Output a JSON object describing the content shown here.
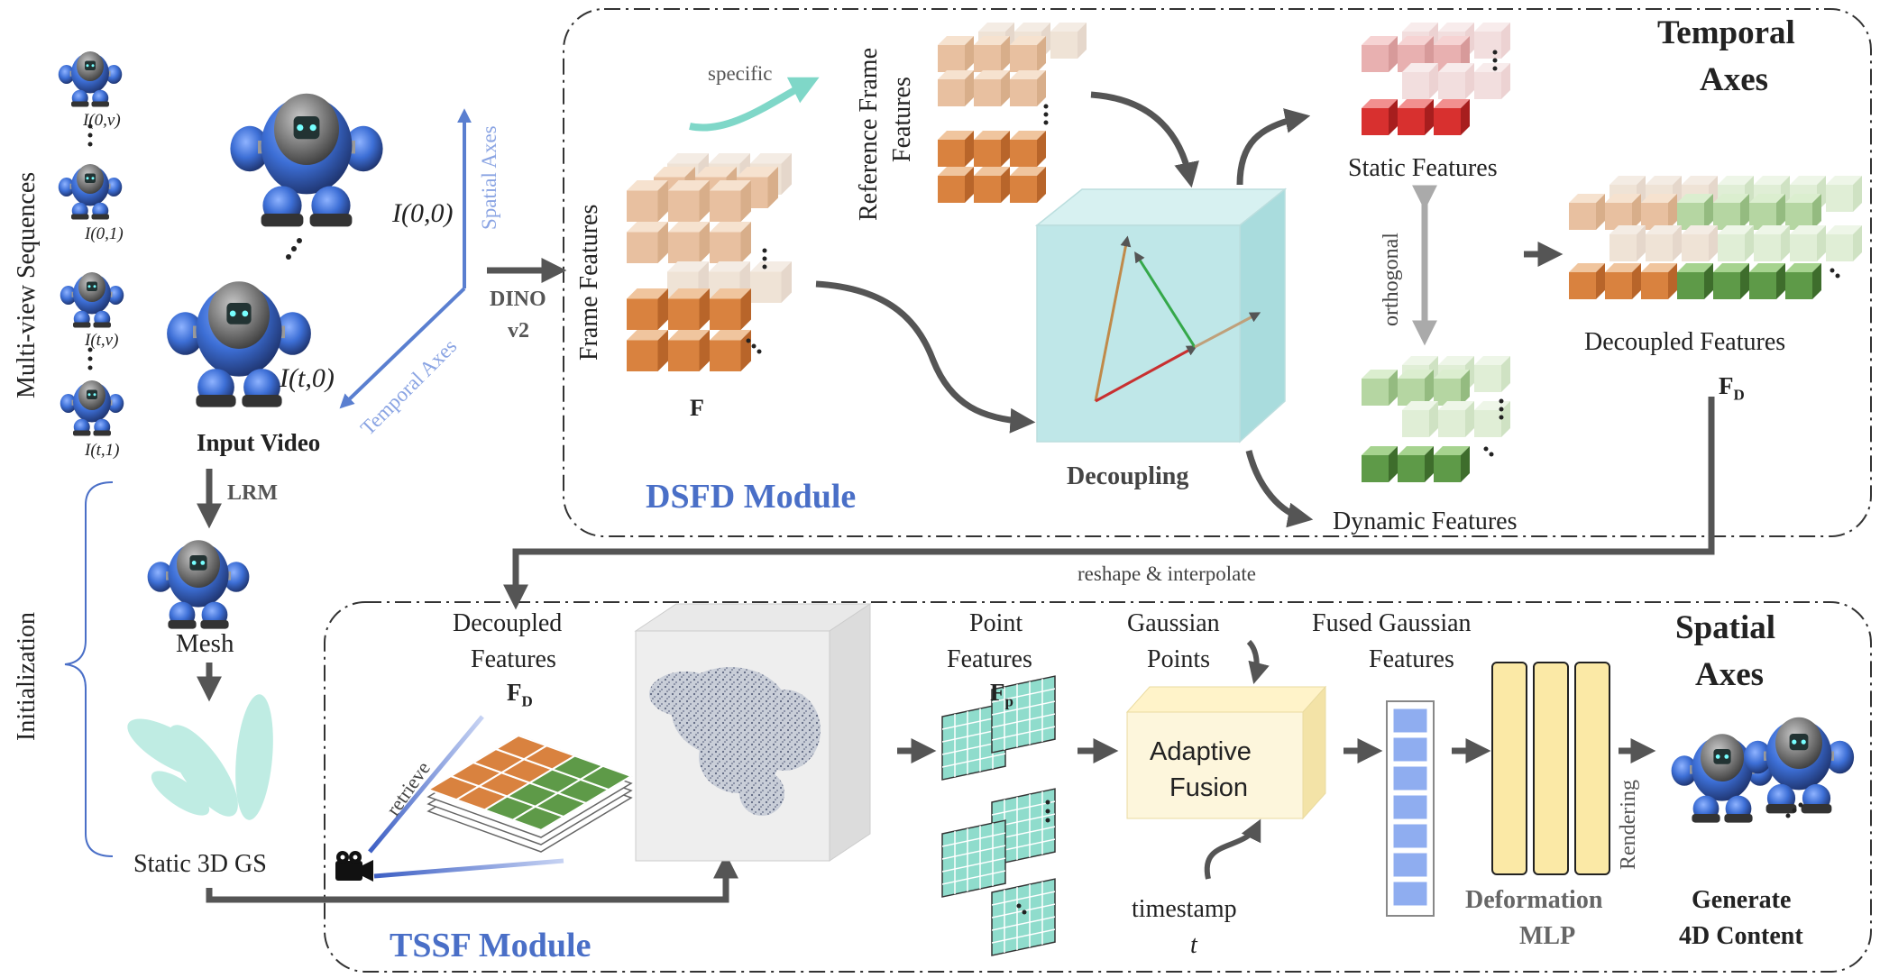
{
  "labels": {
    "multiview": "Multi-view Sequences",
    "initialization": "Initialization",
    "frames": [
      "I(0,v)",
      "I(0,1)",
      "I(t,v)",
      "I(t,1)"
    ],
    "i00": "I(0,0)",
    "it0": "I(t,0)",
    "spatial_axes_arrow": "Spatial Axes",
    "temporal_axes_arrow": "Temporal Axes",
    "input_video": "Input Video",
    "lrm": "LRM",
    "mesh": "Mesh",
    "static_gs": "Static 3D GS",
    "dino": "DINO",
    "dino_v2": "v2"
  },
  "dsfd": {
    "title": "DSFD Module",
    "frame_features": "Frame Features",
    "F": "F",
    "specific": "specific",
    "reference_frame_features_1": "Reference Frame",
    "reference_frame_features_2": "Features",
    "decoupling": "Decoupling",
    "static_features": "Static Features",
    "dynamic_features": "Dynamic Features",
    "orthogonal": "orthogonal",
    "decoupled_features": "Decoupled Features",
    "FD": "F",
    "FD_sub": "D",
    "temporal_1": "Temporal",
    "temporal_2": "Axes"
  },
  "reshape": "reshape & interpolate",
  "tssf": {
    "title": "TSSF Module",
    "decoupled_1": "Decoupled",
    "decoupled_2": "Features",
    "FD": "F",
    "FD_sub": "D",
    "retrieve": "retrieve",
    "point_1": "Point",
    "point_2": "Features",
    "Fp": "F",
    "Fp_sub": "p",
    "gaussian_1": "Gaussian",
    "gaussian_2": "Points",
    "adaptive_1": "Adaptive",
    "adaptive_2": "Fusion",
    "timestamp": "timestamp",
    "t": "t",
    "fused_1": "Fused Gaussian",
    "fused_2": "Features",
    "deformation_1": "Deformation",
    "deformation_2": "MLP",
    "rendering": "Rendering",
    "generate_1": "Generate",
    "generate_2": "4D Content",
    "spatial_1": "Spatial",
    "spatial_2": "Axes"
  },
  "colors": {
    "arrow": "#555555",
    "blue": "#4a6fc7",
    "orange": "#d9823f",
    "orange_light": "#e8b88f",
    "red": "#d8302f",
    "red_light": "#e6a3a3",
    "green": "#5e9a48",
    "green_light": "#a9cc95",
    "teal": "#8fdccc",
    "yellow": "#fbe9a6",
    "robot_blue": "#3d6fd6"
  },
  "icons": [
    "robot-icon",
    "camera-icon",
    "gaussian-splat-icon",
    "point-cloud-icon"
  ]
}
